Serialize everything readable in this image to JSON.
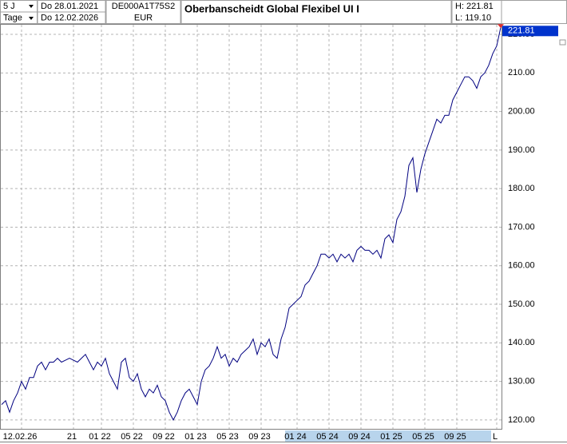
{
  "chart_data": {
    "type": "line",
    "period": "5 J",
    "unit": "Tage",
    "date_from": "Do 28.01.2021",
    "date_to": "Do 12.02.2026",
    "isin": "DE000A1T75S2",
    "currency": "EUR",
    "title": "Oberbanscheidt Global Flexibel UI I",
    "high_label": "H: 221.81",
    "low_label": "L: 119.10",
    "series": [
      {
        "name": "Oberbanscheidt Global Flexibel UI I",
        "color": "#000080",
        "values": [
          124,
          125,
          122,
          125,
          127,
          130,
          128,
          131,
          131,
          134,
          135,
          133,
          135,
          135,
          136,
          135,
          135.5,
          136,
          135.5,
          135,
          136,
          137,
          135,
          133,
          135,
          134,
          136,
          132,
          130,
          128,
          135,
          136,
          131,
          130,
          132,
          128,
          126,
          128,
          127,
          129,
          126,
          125,
          122,
          120,
          122,
          125,
          127,
          128,
          126,
          124,
          130,
          133,
          134,
          136,
          139,
          136,
          137,
          134,
          136,
          135,
          137,
          138,
          139,
          141,
          137,
          140,
          139,
          141,
          137,
          136,
          141,
          144,
          149,
          150,
          151,
          152,
          155,
          156,
          158,
          160,
          163,
          163,
          162,
          163,
          161,
          163,
          162,
          163,
          161,
          164,
          165,
          164,
          164,
          163,
          164,
          162,
          167,
          168,
          166,
          172,
          174,
          178,
          186,
          188,
          179,
          185,
          189,
          192,
          195,
          198,
          197,
          199,
          199,
          203,
          205,
          207,
          209,
          209,
          208,
          206,
          209,
          210,
          212,
          215,
          217,
          221.81
        ]
      }
    ],
    "last_value_label": "221.81",
    "xlim": [
      0,
      125
    ],
    "xticks": [
      {
        "value": 5,
        "label": "12.02.26"
      },
      {
        "value": 18,
        "label": "21"
      },
      {
        "value": 25,
        "label": "01 22"
      },
      {
        "value": 33,
        "label": "05 22"
      },
      {
        "value": 41,
        "label": "09 22"
      },
      {
        "value": 49,
        "label": "01 23"
      },
      {
        "value": 57,
        "label": "05 23"
      },
      {
        "value": 65,
        "label": "09 23"
      },
      {
        "value": 74,
        "label": "01 24"
      },
      {
        "value": 82,
        "label": "05 24"
      },
      {
        "value": 90,
        "label": "09 24"
      },
      {
        "value": 98,
        "label": "01 25"
      },
      {
        "value": 106,
        "label": "05 25"
      },
      {
        "value": 114,
        "label": "09 25"
      },
      {
        "value": 124,
        "label": "L"
      }
    ],
    "ylim": [
      117.7,
      222.7
    ],
    "yticks": [
      {
        "value": 120,
        "label": "120.00"
      },
      {
        "value": 130,
        "label": "130.00"
      },
      {
        "value": 140,
        "label": "140.00"
      },
      {
        "value": 150,
        "label": "150.00"
      },
      {
        "value": 160,
        "label": "160.00"
      },
      {
        "value": 170,
        "label": "170.00"
      },
      {
        "value": 180,
        "label": "180.00"
      },
      {
        "value": 190,
        "label": "190.00"
      },
      {
        "value": 200,
        "label": "200.00"
      },
      {
        "value": 210,
        "label": "210.00"
      },
      {
        "value": 220,
        "label": "220.00"
      }
    ],
    "grid": true
  }
}
